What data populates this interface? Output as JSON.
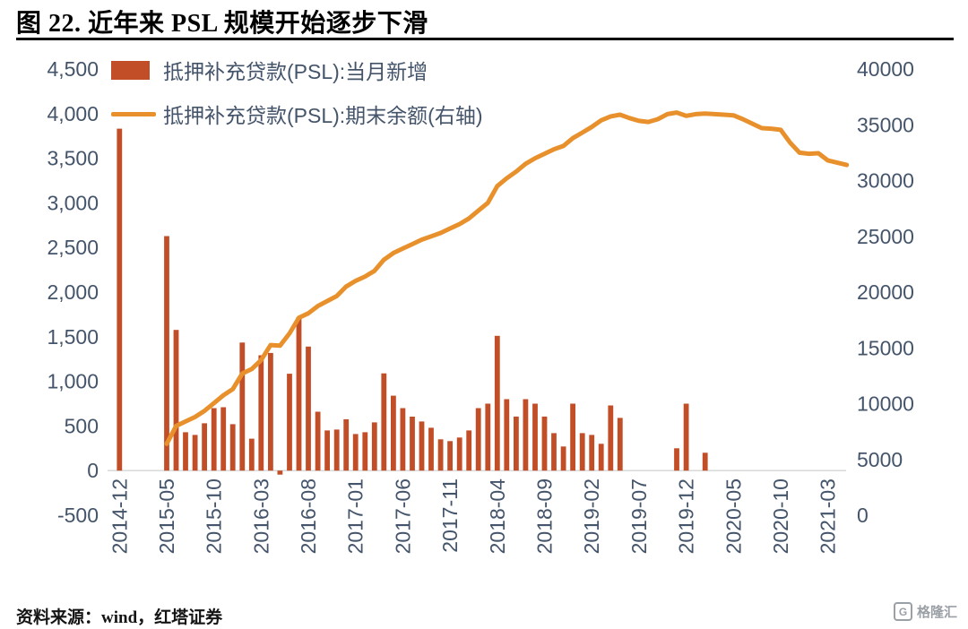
{
  "title": "图 22. 近年来 PSL 规模开始逐步下滑",
  "footer": {
    "source": "资料来源：wind，红塔证券"
  },
  "watermark": {
    "logo_letter": "G",
    "logo_text": "格隆汇"
  },
  "colors": {
    "bar": "#C24E28",
    "line": "#E8912C",
    "axis_text": "#44546A",
    "axis_line": "#D9D9D9",
    "title_rule": "#000000"
  },
  "legend": [
    {
      "label": "抵押补充贷款(PSL):当月新增",
      "type": "bar"
    },
    {
      "label": "抵押补充贷款(PSL):期末余额(右轴)",
      "type": "line"
    }
  ],
  "chart_data": {
    "type": "bar+line combo",
    "title": "图 22. 近年来 PSL 规模开始逐步下滑",
    "x_label_every": 5,
    "x": [
      "2014-12",
      "2015-01",
      "2015-02",
      "2015-03",
      "2015-04",
      "2015-05",
      "2015-06",
      "2015-07",
      "2015-08",
      "2015-09",
      "2015-10",
      "2015-11",
      "2015-12",
      "2016-01",
      "2016-02",
      "2016-03",
      "2016-04",
      "2016-05",
      "2016-06",
      "2016-07",
      "2016-08",
      "2016-09",
      "2016-10",
      "2016-11",
      "2016-12",
      "2017-01",
      "2017-02",
      "2017-03",
      "2017-04",
      "2017-05",
      "2017-06",
      "2017-07",
      "2017-08",
      "2017-09",
      "2017-10",
      "2017-11",
      "2017-12",
      "2018-01",
      "2018-02",
      "2018-03",
      "2018-04",
      "2018-05",
      "2018-06",
      "2018-07",
      "2018-08",
      "2018-09",
      "2018-10",
      "2018-11",
      "2018-12",
      "2019-01",
      "2019-02",
      "2019-03",
      "2019-04",
      "2019-05",
      "2019-06",
      "2019-07",
      "2019-08",
      "2019-09",
      "2019-10",
      "2019-11",
      "2019-12",
      "2020-01",
      "2020-02",
      "2020-03",
      "2020-04",
      "2020-05",
      "2020-06",
      "2020-07",
      "2020-08",
      "2020-09",
      "2020-10",
      "2020-11",
      "2020-12",
      "2021-01",
      "2021-02",
      "2021-03",
      "2021-04",
      "2021-05"
    ],
    "series": [
      {
        "name": "抵押补充贷款(PSL):当月新增",
        "type": "bar",
        "axis": "left",
        "values": [
          3831,
          0,
          0,
          0,
          0,
          2628,
          1576,
          430,
          400,
          530,
          700,
          710,
          520,
          1435,
          357,
          1292,
          1318,
          -45,
          1085,
          1719,
          1390,
          660,
          450,
          460,
          575,
          410,
          430,
          540,
          1089,
          839,
          700,
          604,
          550,
          480,
          350,
          330,
          370,
          450,
          700,
          750,
          1510,
          800,
          605,
          800,
          750,
          605,
          420,
          270,
          750,
          420,
          400,
          300,
          730,
          590,
          0,
          0,
          0,
          0,
          0,
          250,
          750,
          0,
          200,
          0,
          0,
          0,
          0,
          0,
          0,
          0,
          0,
          0,
          0,
          0,
          0,
          0,
          0,
          0
        ]
      },
      {
        "name": "抵押补充贷款(PSL):期末余额(右轴)",
        "type": "line",
        "axis": "right",
        "values": [
          null,
          null,
          null,
          null,
          null,
          6400,
          8000,
          8400,
          8800,
          9350,
          10050,
          10750,
          11300,
          12700,
          13100,
          13900,
          15250,
          15200,
          16300,
          17700,
          18100,
          18750,
          19200,
          19650,
          20500,
          21000,
          21400,
          21900,
          22900,
          23500,
          23900,
          24300,
          24700,
          25000,
          25300,
          25700,
          26100,
          26600,
          27300,
          28000,
          29500,
          30200,
          30800,
          31500,
          32000,
          32400,
          32800,
          33100,
          33800,
          34300,
          34800,
          35400,
          35750,
          35900,
          35600,
          35350,
          35250,
          35500,
          35950,
          36100,
          35800,
          35950,
          36000,
          35950,
          35900,
          35850,
          35500,
          35100,
          34700,
          34650,
          34550,
          33400,
          32500,
          32400,
          32450,
          31800,
          31600,
          31400
        ]
      }
    ],
    "left_axis": {
      "min": -500,
      "max": 4500,
      "ticks": [
        {
          "value": 4500,
          "label": "4,500"
        },
        {
          "value": 4000,
          "label": "4,000"
        },
        {
          "value": 3500,
          "label": "3,500"
        },
        {
          "value": 3000,
          "label": "3,000"
        },
        {
          "value": 2500,
          "label": "2,500"
        },
        {
          "value": 2000,
          "label": "2,000"
        },
        {
          "value": 1500,
          "label": "1,500"
        },
        {
          "value": 1000,
          "label": "1,000"
        },
        {
          "value": 500,
          "label": "500"
        },
        {
          "value": 0,
          "label": "0"
        },
        {
          "value": -500,
          "label": "-500"
        }
      ]
    },
    "right_axis": {
      "min": 0,
      "max": 40000,
      "ticks": [
        {
          "value": 40000,
          "label": "40000"
        },
        {
          "value": 35000,
          "label": "35000"
        },
        {
          "value": 30000,
          "label": "30000"
        },
        {
          "value": 25000,
          "label": "25000"
        },
        {
          "value": 20000,
          "label": "20000"
        },
        {
          "value": 15000,
          "label": "15000"
        },
        {
          "value": 10000,
          "label": "10000"
        },
        {
          "value": 5000,
          "label": "5000"
        },
        {
          "value": 0,
          "label": "0"
        }
      ]
    },
    "grid": "off",
    "legend_position": "top-left-inside"
  }
}
